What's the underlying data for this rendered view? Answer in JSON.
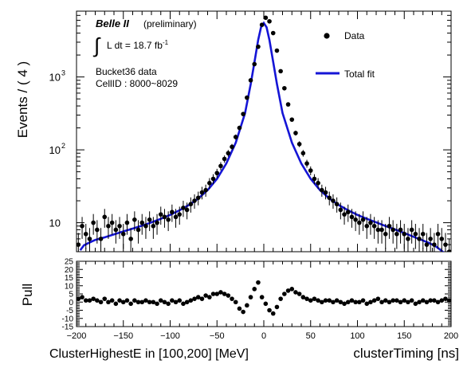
{
  "chart_data": [
    {
      "type": "scatter",
      "panel": "main",
      "ylabel": "Events / ( 4 )",
      "yscale": "log",
      "xlim": [
        -200,
        200
      ],
      "ylim": [
        4,
        8000
      ],
      "y_ticks": [
        10,
        100,
        1000
      ],
      "y_tick_labels": [
        "10",
        "10",
        "10"
      ],
      "y_tick_exponents": [
        "",
        "2",
        "3"
      ],
      "legend": {
        "placement": "top-right",
        "data_label": "Data",
        "fit_label": "Total fit"
      },
      "annotations": {
        "experiment": "Belle II",
        "status": "(preliminary)",
        "lumi_integral": "∫",
        "lumi_text": "L dt = 18.7 fb",
        "lumi_exponent": "-1",
        "dataset": "Bucket36 data",
        "cell_range": "CellID : 8000~8029"
      },
      "series": [
        {
          "name": "Data",
          "style": "markers-with-errorbars",
          "color": "#000000",
          "x": [
            -198,
            -194,
            -190,
            -186,
            -182,
            -178,
            -174,
            -170,
            -166,
            -162,
            -158,
            -154,
            -150,
            -146,
            -142,
            -138,
            -134,
            -130,
            -126,
            -122,
            -118,
            -114,
            -110,
            -106,
            -102,
            -98,
            -94,
            -90,
            -86,
            -82,
            -78,
            -74,
            -70,
            -66,
            -62,
            -58,
            -54,
            -50,
            -46,
            -42,
            -38,
            -34,
            -30,
            -26,
            -22,
            -18,
            -14,
            -10,
            -6,
            -2,
            2,
            6,
            10,
            14,
            18,
            22,
            26,
            30,
            34,
            38,
            42,
            46,
            50,
            54,
            58,
            62,
            66,
            70,
            74,
            78,
            82,
            86,
            90,
            94,
            98,
            102,
            106,
            110,
            114,
            118,
            122,
            126,
            130,
            134,
            138,
            142,
            146,
            150,
            154,
            158,
            162,
            166,
            170,
            174,
            178,
            182,
            186,
            190,
            194,
            198
          ],
          "y": [
            5,
            9,
            7,
            6,
            10,
            8,
            6,
            12,
            9,
            10,
            8,
            9,
            7,
            10,
            6,
            11,
            8,
            10,
            9,
            11,
            9,
            10,
            13,
            12,
            11,
            14,
            12,
            13,
            16,
            15,
            18,
            20,
            22,
            26,
            28,
            35,
            40,
            48,
            60,
            75,
            90,
            110,
            150,
            200,
            310,
            520,
            900,
            1500,
            2600,
            5200,
            6500,
            5800,
            4000,
            2300,
            1200,
            700,
            420,
            260,
            170,
            120,
            90,
            65,
            52,
            40,
            35,
            28,
            26,
            22,
            20,
            18,
            15,
            13,
            14,
            12,
            11,
            10,
            11,
            9,
            10,
            9,
            8,
            8,
            7,
            9,
            8,
            7,
            8,
            7,
            6,
            8,
            7,
            6,
            7,
            5,
            6,
            5,
            7,
            6,
            5,
            4
          ]
        },
        {
          "name": "Total fit",
          "style": "line",
          "color": "#1515d6",
          "x": [
            -196,
            -192,
            -188,
            -184,
            -180,
            -176,
            -170,
            -160,
            -150,
            -140,
            -130,
            -120,
            -110,
            -100,
            -90,
            -80,
            -70,
            -60,
            -50,
            -40,
            -30,
            -20,
            -14,
            -10,
            -6,
            -3,
            0,
            3,
            6,
            10,
            14,
            20,
            30,
            40,
            50,
            60,
            70,
            80,
            90,
            100,
            110,
            120,
            130,
            140,
            150,
            160,
            170,
            176,
            180,
            184,
            186,
            188,
            190,
            192,
            194
          ],
          "y": [
            4.2,
            4.9,
            5.2,
            5.5,
            5.8,
            6.0,
            6.3,
            6.9,
            7.6,
            8.3,
            9.1,
            10.1,
            11.3,
            12.8,
            14.8,
            17.5,
            21.5,
            28,
            40,
            65,
            125,
            320,
            800,
            1600,
            3200,
            4800,
            5500,
            4800,
            3200,
            1600,
            800,
            320,
            125,
            65,
            40,
            28,
            21.5,
            17.5,
            14.8,
            12.8,
            11.3,
            10.1,
            9.0,
            8.1,
            7.2,
            6.4,
            5.7,
            5.3,
            5.0,
            4.7,
            4.5,
            4.3,
            4.1,
            3.9,
            3.7
          ]
        }
      ]
    },
    {
      "type": "scatter",
      "panel": "pull",
      "ylabel": "Pull",
      "xlabel": "clusterTiming [ns]",
      "xlim": [
        -200,
        200
      ],
      "ylim": [
        -15,
        25
      ],
      "y_ticks": [
        -15,
        -10,
        -5,
        0,
        5,
        10,
        15,
        20,
        25
      ],
      "x_ticks": [
        -200,
        -150,
        -100,
        -50,
        0,
        50,
        100,
        150,
        200
      ],
      "x": [
        -198,
        -194,
        -190,
        -186,
        -182,
        -178,
        -174,
        -170,
        -166,
        -162,
        -158,
        -154,
        -150,
        -146,
        -142,
        -138,
        -134,
        -130,
        -126,
        -122,
        -118,
        -114,
        -110,
        -106,
        -102,
        -98,
        -94,
        -90,
        -86,
        -82,
        -78,
        -74,
        -70,
        -66,
        -62,
        -58,
        -54,
        -50,
        -46,
        -42,
        -38,
        -34,
        -30,
        -26,
        -22,
        -18,
        -14,
        -10,
        -6,
        -2,
        2,
        6,
        10,
        14,
        18,
        22,
        26,
        30,
        34,
        38,
        42,
        46,
        50,
        54,
        58,
        62,
        66,
        70,
        74,
        78,
        82,
        86,
        90,
        94,
        98,
        102,
        106,
        110,
        114,
        118,
        122,
        126,
        130,
        134,
        138,
        142,
        146,
        150,
        154,
        158,
        162,
        166,
        170,
        174,
        178,
        182,
        186,
        190,
        194,
        198
      ],
      "y": [
        2,
        3,
        1,
        1,
        2,
        1,
        0,
        2,
        0,
        1,
        -1,
        1,
        0,
        1,
        -1,
        1,
        0,
        0,
        1,
        0,
        0,
        -1,
        1,
        0,
        -1,
        1,
        0,
        1,
        -1,
        0,
        1,
        2,
        3,
        2,
        4,
        3,
        5,
        5,
        6,
        5,
        4,
        2,
        0,
        -4,
        -6,
        -2,
        3,
        8,
        12,
        3,
        -1,
        -5,
        -7,
        -3,
        2,
        5,
        7,
        8,
        6,
        5,
        3,
        2,
        1,
        2,
        1,
        0,
        1,
        1,
        0,
        1,
        0,
        -1,
        0,
        1,
        0,
        0,
        1,
        -1,
        0,
        1,
        2,
        0,
        1,
        0,
        1,
        1,
        0,
        1,
        0,
        1,
        -1,
        0,
        1,
        0,
        1,
        1,
        0,
        1,
        2,
        1
      ]
    }
  ],
  "x_axis_caption": "ClusterHighestE in [100,200] [MeV]"
}
